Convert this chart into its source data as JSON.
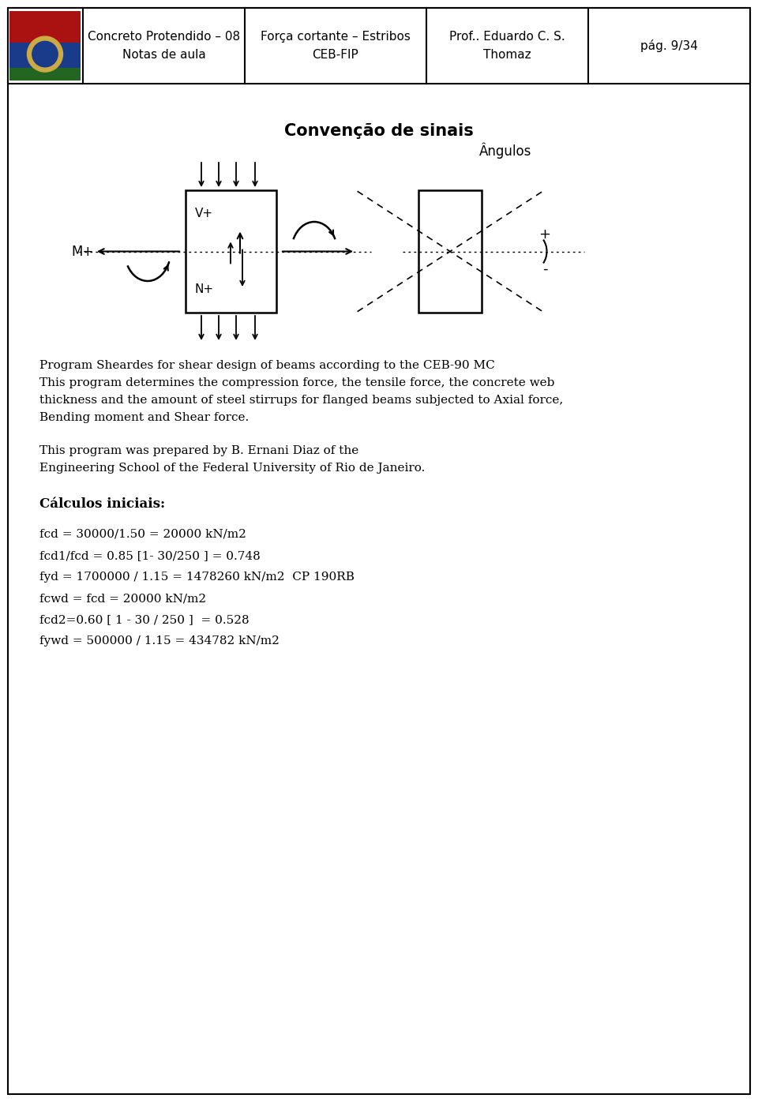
{
  "page_title_left": "Concreto Protendido – 08\nNotas de aula",
  "page_title_center": "Força cortante – Estribos\nCEB-FIP",
  "page_title_right": "Prof.. Eduardo C. S.\nThomaz",
  "page_num": "pág. 9/34",
  "section_title": "Convenção de sinais",
  "angulos_label": "Ângulos",
  "mp_label": "M+",
  "np_label": "N+",
  "vp_label": "V+",
  "plus_label": "+",
  "minus_label": "-",
  "para1_line1": "Program Sheardes for shear design of beams according to the CEB-90 MC",
  "para1_line2": "This program determines the compression force, the tensile force, the concrete web",
  "para1_line3": "thickness and the amount of steel stirrups for flanged beams subjected to Axial force,",
  "para1_line4": "Bending moment and Shear force.",
  "para2_line1": "This program was prepared by B. Ernani Diaz of the",
  "para2_line2": "Engineering School of the Federal University of Rio de Janeiro.",
  "calc_title": "Cálculos iniciais:",
  "calc_lines": [
    "fcd = 30000/1.50 = 20000 kN/m2",
    "fcd1/fcd = 0.85 [1- 30/250 ] = 0.748",
    "fyd = 1700000 / 1.15 = 1478260 kN/m2  CP 190RB",
    "fcwd = fcd = 20000 kN/m2",
    "fcd2=0.60 [ 1 - 30 / 250 ]  = 0.528",
    "fywd = 500000 / 1.15 = 434782 kN/m2"
  ],
  "bg_color": "#ffffff",
  "border_color": "#000000",
  "text_color": "#000000",
  "header": {
    "logo_blue": "#2255aa",
    "logo_red": "#cc2222",
    "logo_green": "#228822"
  }
}
